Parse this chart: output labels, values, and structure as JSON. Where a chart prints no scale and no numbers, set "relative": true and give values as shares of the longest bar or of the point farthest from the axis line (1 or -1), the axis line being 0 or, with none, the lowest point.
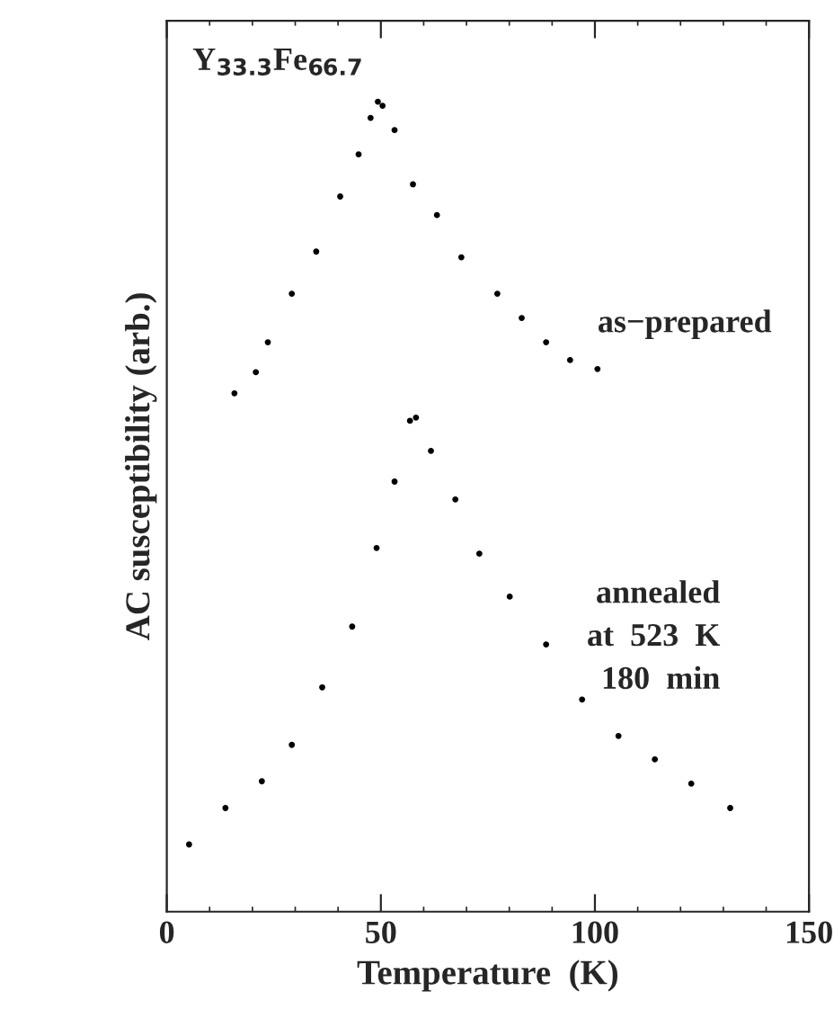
{
  "chart_data": {
    "type": "scatter",
    "relative": true,
    "xlabel": "Temperature  (K)",
    "ylabel": "AC susceptibility (arb.)",
    "xlim": [
      0,
      150
    ],
    "xticks": [
      0,
      50,
      100,
      150
    ],
    "grid": false,
    "legend": false,
    "marker": "circle",
    "annotations": [
      "Y$_{33.3}$Fe$_{66.7}$"
    ],
    "series": [
      {
        "name": "as−prepared",
        "color": "#000000",
        "x": [
          15.8,
          20.8,
          23.6,
          29.2,
          34.9,
          40.5,
          44.8,
          47.6,
          49.3,
          50.4,
          53.2,
          57.5,
          63.1,
          68.8,
          77.2,
          82.9,
          88.6,
          94.2,
          100.6
        ],
        "values": [
          0.64,
          0.666,
          0.703,
          0.763,
          0.815,
          0.883,
          0.935,
          0.98,
          1,
          0.995,
          0.965,
          0.898,
          0.86,
          0.808,
          0.763,
          0.733,
          0.703,
          0.681,
          0.67
        ]
      },
      {
        "name": "annealed\nat  523  K\n180  min",
        "color": "#000000",
        "x": [
          5.2,
          13.7,
          22.2,
          29.2,
          36.3,
          43.3,
          49.0,
          53.2,
          56.8,
          58.2,
          61.7,
          67.4,
          73.0,
          80.1,
          88.6,
          97.0,
          105.5,
          114.0,
          122.5,
          131.6
        ],
        "values": [
          0.083,
          0.128,
          0.161,
          0.206,
          0.277,
          0.352,
          0.449,
          0.531,
          0.606,
          0.61,
          0.569,
          0.509,
          0.442,
          0.389,
          0.33,
          0.262,
          0.217,
          0.188,
          0.158,
          0.128
        ]
      }
    ]
  }
}
